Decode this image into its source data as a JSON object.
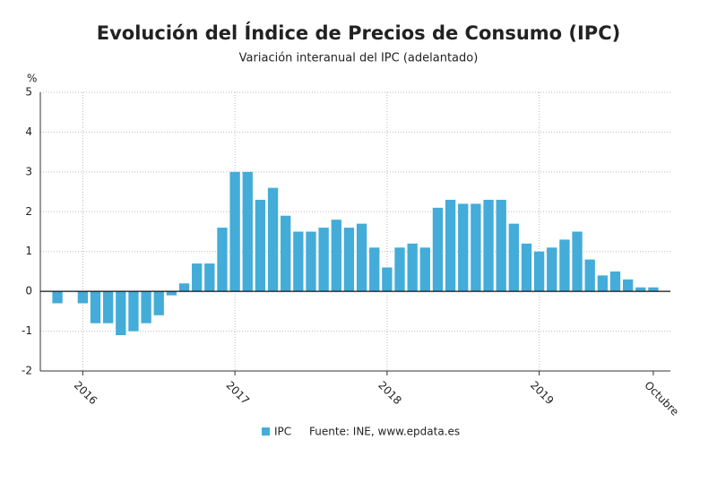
{
  "chart_data": {
    "type": "bar",
    "title": "Evolución del Índice de Precios de Consumo (IPC)",
    "subtitle": "Variación interanual del IPC (adelantado)",
    "y_label": "%",
    "source": "Fuente: INE, www.epdata.es",
    "categories": [
      null,
      null,
      "2016",
      null,
      null,
      null,
      null,
      null,
      null,
      null,
      null,
      null,
      null,
      null,
      "2017",
      null,
      null,
      null,
      null,
      null,
      null,
      null,
      null,
      null,
      null,
      null,
      "2018",
      null,
      null,
      null,
      null,
      null,
      null,
      null,
      null,
      null,
      null,
      null,
      "2019",
      null,
      null,
      null,
      null,
      null,
      null,
      null,
      null,
      "Octubre"
    ],
    "series": [
      {
        "name": "IPC",
        "color": "#43acd8",
        "values": [
          -0.3,
          0.0,
          -0.3,
          -0.8,
          -0.8,
          -1.1,
          -1.0,
          -0.8,
          -0.6,
          -0.1,
          0.2,
          0.7,
          0.7,
          1.6,
          3.0,
          3.0,
          2.3,
          2.6,
          1.9,
          1.5,
          1.5,
          1.6,
          1.8,
          1.6,
          1.7,
          1.1,
          0.6,
          1.1,
          1.2,
          1.1,
          2.1,
          2.3,
          2.2,
          2.2,
          2.3,
          2.3,
          1.7,
          1.2,
          1.0,
          1.1,
          1.3,
          1.5,
          0.8,
          0.4,
          0.5,
          0.3,
          0.1,
          0.1
        ]
      }
    ],
    "ylim": [
      -2,
      5
    ],
    "yticks": [
      -2,
      -1,
      0,
      1,
      2,
      3,
      4,
      5
    ],
    "grid": true
  }
}
